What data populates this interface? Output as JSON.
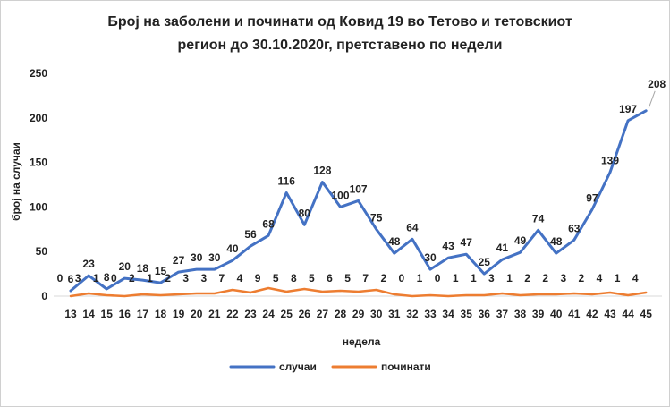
{
  "chart_data": {
    "type": "line",
    "title_line1": "Број на заболени и починати од Ковид 19 во Тетово и тетовскиот",
    "title_line2": "регион до 30.10.2020г,  претставено по  недели",
    "xlabel": "недела",
    "ylabel": "број на случаи",
    "ylim": [
      0,
      250
    ],
    "yticks": [
      "0",
      "50",
      "100",
      "150",
      "200",
      "250"
    ],
    "categories": [
      "13",
      "14",
      "15",
      "16",
      "17",
      "18",
      "19",
      "20",
      "21",
      "22",
      "23",
      "24",
      "25",
      "26",
      "27",
      "28",
      "29",
      "30",
      "31",
      "32",
      "33",
      "34",
      "35",
      "36",
      "37",
      "38",
      "39",
      "40",
      "41",
      "42",
      "43",
      "44",
      "45"
    ],
    "grid": false,
    "legend_position": "bottom",
    "series": [
      {
        "name": "случаи",
        "color": "#4472c4",
        "values": [
          6,
          23,
          8,
          20,
          18,
          15,
          27,
          30,
          30,
          40,
          56,
          68,
          116,
          80,
          128,
          100,
          107,
          75,
          48,
          64,
          30,
          43,
          47,
          25,
          41,
          49,
          74,
          48,
          63,
          97,
          139,
          197,
          208
        ]
      },
      {
        "name": "починати",
        "color": "#ed7d31",
        "values": [
          0,
          3,
          1,
          0,
          2,
          1,
          2,
          3,
          3,
          7,
          4,
          9,
          5,
          8,
          5,
          6,
          5,
          7,
          2,
          0,
          1,
          0,
          1,
          1,
          3,
          1,
          2,
          2,
          3,
          2,
          4,
          1,
          4
        ]
      }
    ]
  }
}
